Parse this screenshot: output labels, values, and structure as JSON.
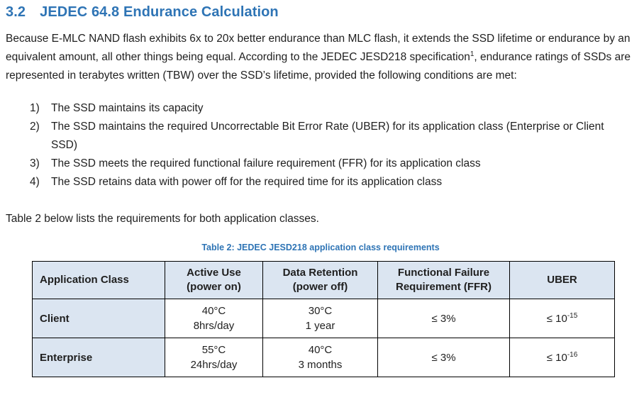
{
  "heading": {
    "number": "3.2",
    "title": "JEDEC 64.8 Endurance Calculation"
  },
  "intro": {
    "part1": "Because E-MLC NAND flash exhibits 6x to 20x better endurance than MLC flash, it extends the SSD lifetime or endurance by an equivalent amount, all other things being equal. According to the JEDEC JESD218 specification",
    "superscript": "1",
    "part2": ", endurance ratings of SSDs are represented in terabytes written (TBW) over the SSD’s lifetime, provided the following conditions are met:"
  },
  "list": {
    "items": [
      {
        "num": "1)",
        "text": "The SSD maintains its capacity"
      },
      {
        "num": "2)",
        "text": "The SSD maintains the required Uncorrectable Bit Error Rate (UBER) for its application class (Enterprise or Client SSD)"
      },
      {
        "num": "3)",
        "text": "The SSD meets the required functional failure requirement (FFR) for its application class"
      },
      {
        "num": "4)",
        "text": "The SSD retains data with power off for the required time for its application class"
      }
    ]
  },
  "table_intro": "Table 2 below lists the requirements for both application classes.",
  "table": {
    "caption": "Table 2: JEDEC JESD218 application class requirements",
    "columns": [
      {
        "line1": "Application Class",
        "line2": ""
      },
      {
        "line1": "Active Use",
        "line2": "(power on)"
      },
      {
        "line1": "Data Retention",
        "line2": "(power off)"
      },
      {
        "line1": "Functional Failure",
        "line2": "Requirement (FFR)"
      },
      {
        "line1": "UBER",
        "line2": ""
      }
    ],
    "rows": [
      {
        "class_name": "Client",
        "active_use": {
          "line1": "40°C",
          "line2": "8hrs/day"
        },
        "retention": {
          "line1": "30°C",
          "line2": "1 year"
        },
        "ffr": "≤ 3%",
        "uber_base": "≤ 10",
        "uber_sup": "-15"
      },
      {
        "class_name": "Enterprise",
        "active_use": {
          "line1": "55°C",
          "line2": "24hrs/day"
        },
        "retention": {
          "line1": "40°C",
          "line2": "3 months"
        },
        "ffr": "≤ 3%",
        "uber_base": "≤ 10",
        "uber_sup": "-16"
      }
    ]
  }
}
